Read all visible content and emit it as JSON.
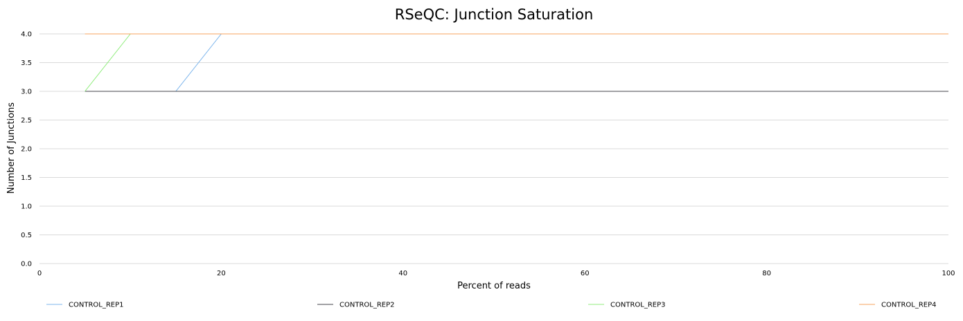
{
  "chart_data": {
    "type": "line",
    "title": "RSeQC: Junction Saturation",
    "xlabel": "Percent of reads",
    "ylabel": "Number of Junctions",
    "xlim": [
      0,
      100
    ],
    "ylim": [
      0,
      4
    ],
    "x_ticks": [
      0,
      20,
      40,
      60,
      80,
      100
    ],
    "y_ticks": [
      "0.0",
      "0.5",
      "1.0",
      "1.5",
      "2.0",
      "2.5",
      "3.0",
      "3.5",
      "4.0"
    ],
    "grid": true,
    "legend_position": "bottom",
    "x": [
      5,
      10,
      15,
      20,
      25,
      30,
      35,
      40,
      45,
      50,
      55,
      60,
      65,
      70,
      75,
      80,
      85,
      90,
      95,
      100
    ],
    "series": [
      {
        "name": "CONTROL_REP1",
        "color": "#7cb5ec",
        "values": [
          3,
          3,
          3,
          4,
          4,
          4,
          4,
          4,
          4,
          4,
          4,
          4,
          4,
          4,
          4,
          4,
          4,
          4,
          4,
          4
        ]
      },
      {
        "name": "CONTROL_REP2",
        "color": "#434348",
        "values": [
          3,
          3,
          3,
          3,
          3,
          3,
          3,
          3,
          3,
          3,
          3,
          3,
          3,
          3,
          3,
          3,
          3,
          3,
          3,
          3
        ]
      },
      {
        "name": "CONTROL_REP3",
        "color": "#90ed7d",
        "values": [
          3,
          4,
          4,
          4,
          4,
          4,
          4,
          4,
          4,
          4,
          4,
          4,
          4,
          4,
          4,
          4,
          4,
          4,
          4,
          4
        ]
      },
      {
        "name": "CONTROL_REP4",
        "color": "#f7a35c",
        "values": [
          4,
          4,
          4,
          4,
          4,
          4,
          4,
          4,
          4,
          4,
          4,
          4,
          4,
          4,
          4,
          4,
          4,
          4,
          4,
          4
        ]
      }
    ]
  }
}
